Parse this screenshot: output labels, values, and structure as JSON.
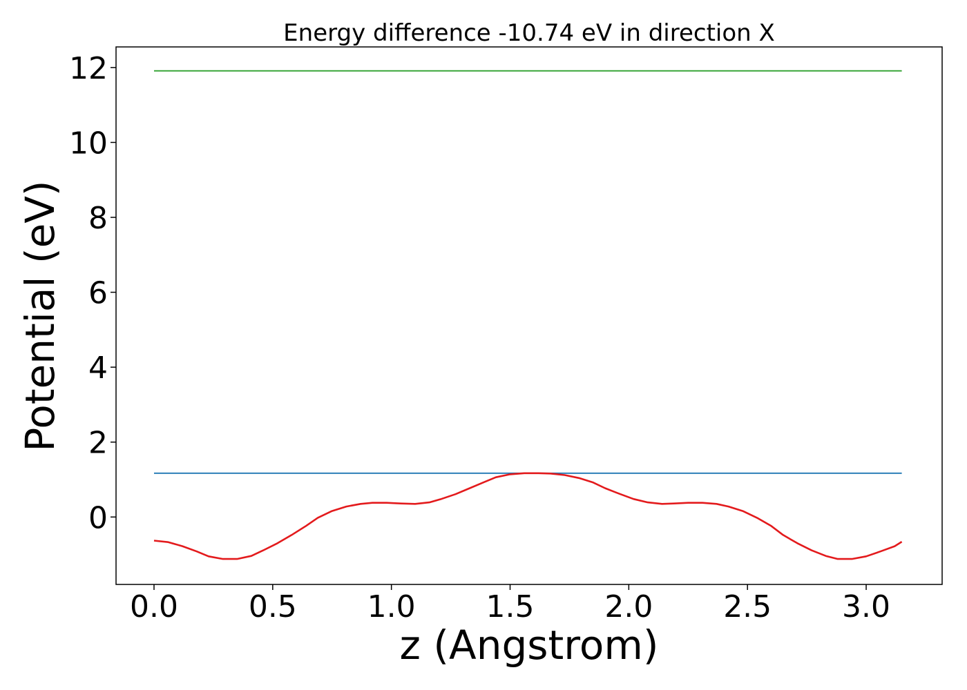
{
  "chart_data": {
    "type": "line",
    "title": "Energy difference -10.74 eV in direction X",
    "xlabel": "z (Angstrom)",
    "ylabel": "Potential (eV)",
    "xlim": [
      -0.16,
      3.32
    ],
    "ylim": [
      -1.8,
      12.55
    ],
    "xticks": [
      0.0,
      0.5,
      1.0,
      1.5,
      2.0,
      2.5,
      3.0
    ],
    "xtick_labels": [
      "0.0",
      "0.5",
      "1.0",
      "1.5",
      "2.0",
      "2.5",
      "3.0"
    ],
    "yticks": [
      0,
      2,
      4,
      6,
      8,
      10,
      12
    ],
    "ytick_labels": [
      "0",
      "2",
      "4",
      "6",
      "8",
      "10",
      "12"
    ],
    "grid": false,
    "series": [
      {
        "color": "#2ca02c",
        "x": [
          0.0,
          3.15
        ],
        "y": [
          11.91,
          11.91
        ]
      },
      {
        "color": "#1f77b4",
        "x": [
          0.0,
          3.15
        ],
        "y": [
          1.17,
          1.17
        ]
      },
      {
        "color": "#e31a1c",
        "x": [
          0.0,
          0.06,
          0.12,
          0.18,
          0.23,
          0.29,
          0.35,
          0.41,
          0.46,
          0.52,
          0.58,
          0.64,
          0.69,
          0.75,
          0.81,
          0.87,
          0.92,
          0.98,
          1.04,
          1.1,
          1.16,
          1.21,
          1.27,
          1.33,
          1.39,
          1.44,
          1.5,
          1.56,
          1.62,
          1.67,
          1.73,
          1.79,
          1.85,
          1.9,
          1.96,
          2.02,
          2.08,
          2.14,
          2.19,
          2.25,
          2.31,
          2.37,
          2.42,
          2.48,
          2.54,
          2.6,
          2.65,
          2.71,
          2.77,
          2.83,
          2.88,
          2.94,
          3.0,
          3.06,
          3.12,
          3.15
        ],
        "y": [
          -0.63,
          -0.67,
          -0.78,
          -0.92,
          -1.05,
          -1.12,
          -1.12,
          -1.04,
          -0.89,
          -0.7,
          -0.48,
          -0.24,
          -0.02,
          0.16,
          0.28,
          0.35,
          0.38,
          0.38,
          0.36,
          0.35,
          0.39,
          0.48,
          0.61,
          0.77,
          0.93,
          1.06,
          1.14,
          1.17,
          1.17,
          1.16,
          1.12,
          1.04,
          0.92,
          0.77,
          0.62,
          0.48,
          0.39,
          0.35,
          0.36,
          0.38,
          0.38,
          0.35,
          0.28,
          0.16,
          -0.02,
          -0.24,
          -0.48,
          -0.7,
          -0.89,
          -1.04,
          -1.12,
          -1.12,
          -1.05,
          -0.92,
          -0.78,
          -0.66
        ]
      }
    ]
  }
}
